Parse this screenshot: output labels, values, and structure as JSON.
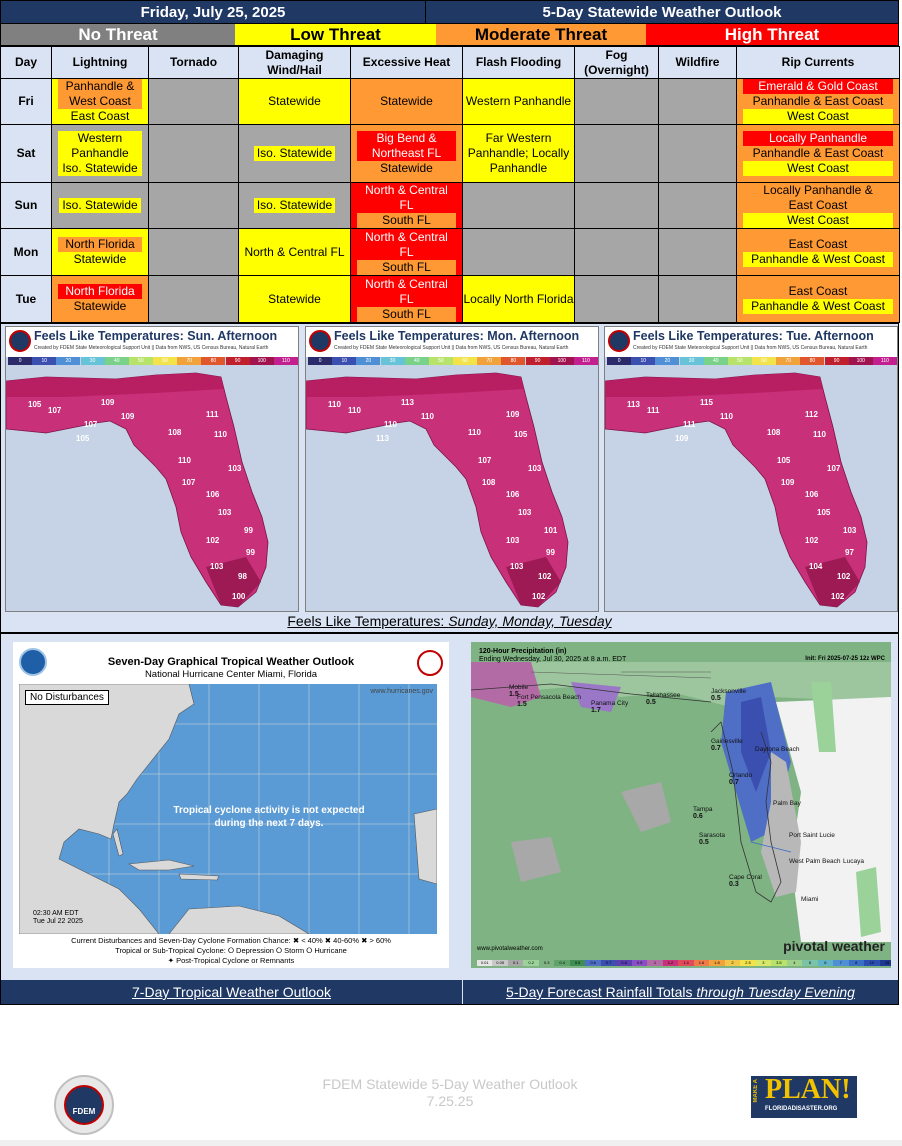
{
  "header": {
    "date": "Friday, July 25, 2025",
    "title": "5-Day Statewide Weather Outlook"
  },
  "legend": {
    "none": "No Threat",
    "low": "Low Threat",
    "moderate": "Moderate Threat",
    "high": "High Threat"
  },
  "columns": [
    "Day",
    "Lightning",
    "Tornado",
    "Damaging Wind/Hail",
    "Excessive Heat",
    "Flash Flooding",
    "Fog (Overnight)",
    "Wildfire",
    "Rip Currents"
  ],
  "rows": [
    {
      "day": "Fri",
      "lightning": [
        "Panhandle &",
        "West Coast",
        "East Coast"
      ],
      "wind": "Statewide",
      "heat": "Statewide",
      "flood": "Western Panhandle",
      "rip": [
        "Emerald & Gold Coast",
        "Panhandle & East Coast",
        "West Coast"
      ]
    },
    {
      "day": "Sat",
      "lightning": [
        "Western",
        "Panhandle",
        "Iso. Statewide"
      ],
      "wind": "Iso. Statewide",
      "heat": [
        "Big Bend &",
        "Northeast FL",
        "Statewide"
      ],
      "flood": "Far Western Panhandle; Locally Panhandle",
      "rip": [
        "Locally Panhandle",
        "Panhandle & East Coast",
        "West Coast"
      ]
    },
    {
      "day": "Sun",
      "lightning": "Iso. Statewide",
      "wind": "Iso. Statewide",
      "heat": [
        "North & Central",
        "FL",
        "South FL"
      ],
      "rip": [
        "Locally Panhandle &",
        "East Coast",
        "West Coast"
      ]
    },
    {
      "day": "Mon",
      "lightning": [
        "North Florida",
        "Statewide"
      ],
      "wind": "North & Central FL",
      "heat": [
        "North & Central",
        "FL",
        "South FL"
      ],
      "rip": [
        "East Coast",
        "Panhandle & West Coast"
      ]
    },
    {
      "day": "Tue",
      "lightning": [
        "North Florida",
        "Statewide"
      ],
      "wind": "Statewide",
      "heat": [
        "North & Central",
        "FL",
        "South FL"
      ],
      "flood": "Locally North Florida",
      "rip": [
        "East Coast",
        "Panhandle & West Coast"
      ]
    }
  ],
  "feels": {
    "maps": [
      {
        "title": "Feels Like Temperatures: Sun. Afternoon",
        "temps": [
          "105",
          "107",
          "109",
          "109",
          "107",
          "105",
          "111",
          "108",
          "110",
          "110",
          "103",
          "107",
          "106",
          "103",
          "99",
          "102",
          "99",
          "103",
          "98",
          "100"
        ]
      },
      {
        "title": "Feels Like Temperatures: Mon. Afternoon",
        "temps": [
          "110",
          "110",
          "113",
          "110",
          "110",
          "113",
          "109",
          "110",
          "105",
          "107",
          "103",
          "108",
          "106",
          "103",
          "101",
          "103",
          "99",
          "103",
          "102",
          "102"
        ]
      },
      {
        "title": "Feels Like Temperatures: Tue. Afternoon",
        "temps": [
          "113",
          "111",
          "115",
          "110",
          "111",
          "109",
          "112",
          "108",
          "110",
          "105",
          "107",
          "109",
          "106",
          "105",
          "103",
          "102",
          "97",
          "104",
          "102",
          "102"
        ]
      }
    ],
    "subtitle": "Created by FDEM State Meteorological Support Unit || Data from NWS, US Census Bureau, Natural Earth",
    "scale": [
      "0",
      "10",
      "20",
      "30",
      "40",
      "50",
      "60",
      "70",
      "80",
      "90",
      "100",
      "110"
    ],
    "caption_prefix": "Feels Like Temperatures: ",
    "caption_days": "Sunday, Monday, Tuesday"
  },
  "tropical": {
    "title": "Seven-Day Graphical Tropical Weather Outlook",
    "subtitle": "National Hurricane Center  Miami, Florida",
    "website": "www.hurricanes.gov",
    "no_disturbances": "No Disturbances",
    "message": "Tropical cyclone activity is not expected during the next 7 days.",
    "issued": [
      "02:30 AM EDT",
      "Tue Jul 22 2025"
    ],
    "legend_line1": "Current Disturbances and Seven-Day Cyclone Formation Chance:   ✖ < 40%   ✖ 40-60%   ✖ > 60%",
    "legend_line2": "Tropical or Sub-Tropical Cyclone:   ⭘ Depression   ⭘ Storm   ⭘ Hurricane",
    "legend_line3": "✦ Post-Tropical Cyclone or Remnants",
    "caption": "7-Day Tropical Weather Outlook"
  },
  "rain": {
    "title": "120-Hour Precipitation (in)",
    "ending": "Ending Wednesday, Jul 30, 2025 at 8 a.m. EDT",
    "init": "Init: Fri 2025-07-25 12z WPC",
    "brand": "pivotal weather",
    "website": "www.pivotalweather.com",
    "scale": [
      "0.01",
      "0.05",
      "0.1",
      "0.2",
      "0.3",
      "0.4",
      "0.5",
      "0.6",
      "0.7",
      "0.8",
      "0.9",
      "1",
      "1.2",
      "1.4",
      "1.6",
      "1.8",
      "2",
      "2.5",
      "3",
      "3.5",
      "4",
      "5",
      "6",
      "7",
      "8",
      "10",
      "15"
    ],
    "cities": [
      {
        "name": "Mobile",
        "val": "1.5"
      },
      {
        "name": "Fort Pensacola Beach",
        "val": "1.5"
      },
      {
        "name": "Panama City",
        "val": "1.7"
      },
      {
        "name": "Tallahassee",
        "val": "0.5"
      },
      {
        "name": "Jacksonville",
        "val": "0.5"
      },
      {
        "name": "Gainesville",
        "val": "0.7"
      },
      {
        "name": "Daytona Beach",
        "val": ""
      },
      {
        "name": "Orlando",
        "val": "0.7"
      },
      {
        "name": "Tampa",
        "val": "0.6"
      },
      {
        "name": "Palm Bay",
        "val": ""
      },
      {
        "name": "Sarasota",
        "val": "0.5"
      },
      {
        "name": "Port Saint Lucie",
        "val": ""
      },
      {
        "name": "West Palm Beach",
        "val": ""
      },
      {
        "name": "Cape Coral",
        "val": "0.3"
      },
      {
        "name": "Lucaya",
        "val": ""
      },
      {
        "name": "Miami",
        "val": ""
      }
    ],
    "caption_prefix": "5-Day Forecast Rainfall Totals ",
    "caption_em": "through Tuesday Evening"
  },
  "footer": {
    "logo_text": "FDEM",
    "line1": "FDEM Statewide 5-Day Weather Outlook",
    "line2": "7.25.25",
    "plan_make": "MAKE A",
    "plan": "PLAN!",
    "plan_url": "FLORIDADISASTER.ORG"
  },
  "colors": {
    "navy": "#1f3864",
    "none": "#a6a6a6",
    "low": "#ffff00",
    "moderate": "#ff9933",
    "high": "#ff0000",
    "header_bg": "#dae3f3"
  }
}
